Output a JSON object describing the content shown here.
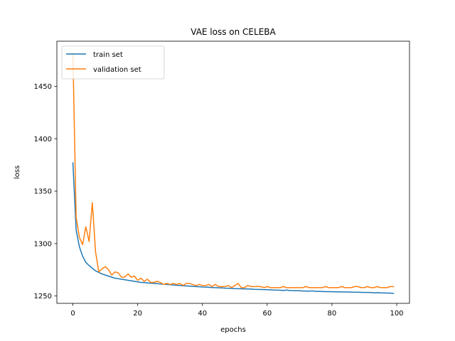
{
  "chart_data": {
    "type": "line",
    "title": "VAE loss on CELEBA",
    "xlabel": "epochs",
    "ylabel": "loss",
    "xlim": [
      -4.95,
      103.95
    ],
    "ylim": [
      1243,
      1493
    ],
    "xticks": [
      0,
      20,
      40,
      60,
      80,
      100
    ],
    "yticks": [
      1250,
      1300,
      1350,
      1400,
      1450
    ],
    "grid": false,
    "legend_position": "top-left",
    "series": [
      {
        "name": "train set",
        "color": "#1f77b4",
        "x": [
          0,
          1,
          2,
          3,
          4,
          5,
          6,
          7,
          8,
          9,
          10,
          11,
          12,
          13,
          14,
          15,
          16,
          17,
          18,
          19,
          20,
          21,
          22,
          23,
          24,
          25,
          26,
          27,
          28,
          29,
          30,
          31,
          32,
          33,
          34,
          35,
          36,
          37,
          38,
          39,
          40,
          41,
          42,
          43,
          44,
          45,
          46,
          47,
          48,
          49,
          50,
          51,
          52,
          53,
          54,
          55,
          56,
          57,
          58,
          59,
          60,
          61,
          62,
          63,
          64,
          65,
          66,
          67,
          68,
          69,
          70,
          71,
          72,
          73,
          74,
          75,
          76,
          77,
          78,
          79,
          80,
          81,
          82,
          83,
          84,
          85,
          86,
          87,
          88,
          89,
          90,
          91,
          92,
          93,
          94,
          95,
          96,
          97,
          98,
          99
        ],
        "values": [
          1377,
          1313,
          1297,
          1288,
          1282,
          1279,
          1276.5,
          1274,
          1272.5,
          1271,
          1270,
          1269,
          1268,
          1267,
          1266.5,
          1266,
          1265.5,
          1265,
          1264.5,
          1264,
          1263.5,
          1263,
          1262.8,
          1262.5,
          1262.2,
          1262,
          1261.8,
          1261.5,
          1261.2,
          1261,
          1260.8,
          1260.5,
          1260.3,
          1260,
          1259.8,
          1259.6,
          1259.4,
          1259.2,
          1259,
          1258.8,
          1258.6,
          1258.5,
          1258.3,
          1258.1,
          1258,
          1257.8,
          1257.7,
          1257.5,
          1257.4,
          1257.2,
          1257.1,
          1257,
          1256.9,
          1256.8,
          1256.7,
          1256.6,
          1256.4,
          1256.3,
          1256.2,
          1256.1,
          1256,
          1255.9,
          1255.7,
          1255.6,
          1255.5,
          1255.3,
          1255.7,
          1255.2,
          1255.1,
          1255,
          1255,
          1254.8,
          1254.7,
          1254.6,
          1254.9,
          1254.4,
          1254.4,
          1254.3,
          1254.2,
          1254.2,
          1254.1,
          1254,
          1254,
          1253.9,
          1253.8,
          1253.8,
          1253.7,
          1253.6,
          1253.6,
          1253.5,
          1253.4,
          1253.4,
          1253.3,
          1253.1,
          1253.2,
          1253,
          1252.9,
          1252.8,
          1252.7,
          1252.5
        ]
      },
      {
        "name": "validation set",
        "color": "#ff7f0e",
        "x": [
          0,
          1,
          2,
          3,
          4,
          5,
          6,
          7,
          8,
          9,
          10,
          11,
          12,
          13,
          14,
          15,
          16,
          17,
          18,
          19,
          20,
          21,
          22,
          23,
          24,
          25,
          26,
          27,
          28,
          29,
          30,
          31,
          32,
          33,
          34,
          35,
          36,
          37,
          38,
          39,
          40,
          41,
          42,
          43,
          44,
          45,
          46,
          47,
          48,
          49,
          50,
          51,
          52,
          53,
          54,
          55,
          56,
          57,
          58,
          59,
          60,
          61,
          62,
          63,
          64,
          65,
          66,
          67,
          68,
          69,
          70,
          71,
          72,
          73,
          74,
          75,
          76,
          77,
          78,
          79,
          80,
          81,
          82,
          83,
          84,
          85,
          86,
          87,
          88,
          89,
          90,
          91,
          92,
          93,
          94,
          95,
          96,
          97,
          98,
          99
        ],
        "values": [
          1481,
          1325,
          1306,
          1299,
          1316,
          1302,
          1339,
          1292,
          1273,
          1276,
          1278,
          1275,
          1270,
          1273,
          1272,
          1268,
          1268,
          1271,
          1268,
          1269,
          1265,
          1267,
          1264,
          1266,
          1263,
          1263,
          1264,
          1263,
          1261,
          1262,
          1261,
          1262,
          1261,
          1262,
          1260,
          1262,
          1262,
          1261,
          1260,
          1261,
          1260,
          1260,
          1261,
          1259,
          1261,
          1259,
          1259,
          1259,
          1260,
          1258,
          1260,
          1262,
          1258,
          1258,
          1260,
          1259,
          1259,
          1259,
          1259,
          1258,
          1259,
          1258,
          1258,
          1258,
          1258,
          1259,
          1258,
          1258,
          1258,
          1258,
          1258,
          1258,
          1259,
          1258,
          1258,
          1258,
          1258,
          1258,
          1259,
          1258,
          1258,
          1258,
          1258,
          1259,
          1258,
          1258,
          1258,
          1259,
          1259,
          1258,
          1258,
          1259,
          1258,
          1258,
          1259,
          1258,
          1258,
          1258,
          1259,
          1259
        ]
      }
    ]
  }
}
